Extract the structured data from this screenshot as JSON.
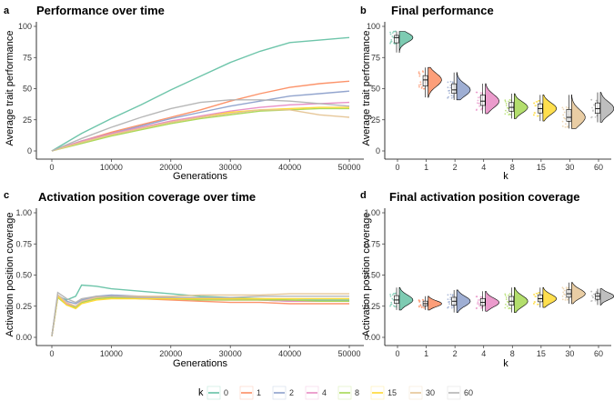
{
  "panels": [
    {
      "letter": "a",
      "title": "Performance over time",
      "xlabel": "Generations",
      "ylabel": "Average trait performance"
    },
    {
      "letter": "b",
      "title": "Final performance",
      "xlabel": "k",
      "ylabel": "Average trait performance"
    },
    {
      "letter": "c",
      "title": "Activation position coverage over time",
      "xlabel": "Generations",
      "ylabel": "Activation position coverage"
    },
    {
      "letter": "d",
      "title": "Final activation position coverage",
      "xlabel": "k",
      "ylabel": "Activation position coverage"
    }
  ],
  "legend": {
    "title": "k",
    "position": "bottom",
    "items": [
      "0",
      "1",
      "2",
      "4",
      "8",
      "15",
      "30",
      "60"
    ]
  },
  "colors": [
    "#66c2a5",
    "#fc8d62",
    "#8da0cb",
    "#e78ac3",
    "#a6d854",
    "#ffd92f",
    "#e5c494",
    "#b3b3b3"
  ],
  "chart_data": [
    {
      "type": "line",
      "title": "Performance over time",
      "xlabel": "Generations",
      "ylabel": "Average trait performance",
      "xlim": [
        0,
        50000
      ],
      "ylim": [
        0,
        100
      ],
      "xticks": [
        "0",
        "10000",
        "20000",
        "30000",
        "40000",
        "50000"
      ],
      "yticks": [
        "0",
        "25",
        "50",
        "75",
        "100"
      ],
      "x": [
        0,
        5000,
        10000,
        15000,
        20000,
        25000,
        30000,
        35000,
        40000,
        45000,
        50000
      ],
      "series": [
        {
          "name": "0",
          "values": [
            0,
            14,
            26,
            37,
            49,
            60,
            71,
            80,
            87,
            89,
            91
          ]
        },
        {
          "name": "1",
          "values": [
            0,
            8,
            15,
            21,
            27,
            33,
            40,
            46,
            51,
            54,
            56
          ]
        },
        {
          "name": "2",
          "values": [
            0,
            8,
            14,
            20,
            26,
            31,
            36,
            40,
            44,
            46,
            48
          ]
        },
        {
          "name": "4",
          "values": [
            0,
            8,
            14,
            19,
            24,
            28,
            32,
            35,
            37,
            38,
            39
          ]
        },
        {
          "name": "8",
          "values": [
            0,
            6,
            12,
            17,
            22,
            26,
            29,
            32,
            33,
            34,
            34
          ]
        },
        {
          "name": "15",
          "values": [
            0,
            7,
            13,
            18,
            23,
            27,
            31,
            33,
            34,
            35,
            35
          ]
        },
        {
          "name": "30",
          "values": [
            0,
            7,
            13,
            18,
            23,
            27,
            30,
            33,
            33,
            29,
            27
          ]
        },
        {
          "name": "60",
          "values": [
            0,
            10,
            19,
            27,
            34,
            39,
            41,
            41,
            40,
            38,
            36
          ]
        }
      ]
    },
    {
      "type": "violin",
      "title": "Final performance",
      "xlabel": "k",
      "ylabel": "Average trait performance",
      "ylim": [
        0,
        100
      ],
      "categories": [
        "0",
        "1",
        "2",
        "4",
        "8",
        "15",
        "30",
        "60"
      ],
      "yticks": [
        "0",
        "25",
        "50",
        "75",
        "100"
      ],
      "medians": [
        91,
        57,
        49,
        40,
        35,
        34,
        27,
        34
      ],
      "ranges": [
        [
          79,
          96
        ],
        [
          43,
          67
        ],
        [
          41,
          63
        ],
        [
          30,
          54
        ],
        [
          26,
          46
        ],
        [
          24,
          45
        ],
        [
          18,
          45
        ],
        [
          23,
          47
        ]
      ]
    },
    {
      "type": "line",
      "title": "Activation position coverage over time",
      "xlabel": "Generations",
      "ylabel": "Activation position coverage",
      "xlim": [
        0,
        50000
      ],
      "ylim": [
        0,
        1
      ],
      "xticks": [
        "0",
        "10000",
        "20000",
        "30000",
        "40000",
        "50000"
      ],
      "yticks": [
        "0.00",
        "0.25",
        "0.50",
        "0.75",
        "1.00"
      ],
      "x": [
        0,
        1000,
        2500,
        4000,
        5000,
        7500,
        10000,
        15000,
        20000,
        25000,
        30000,
        35000,
        40000,
        45000,
        50000
      ],
      "series": [
        {
          "name": "0",
          "values": [
            0.01,
            0.33,
            0.3,
            0.33,
            0.42,
            0.41,
            0.39,
            0.37,
            0.35,
            0.33,
            0.32,
            0.31,
            0.3,
            0.3,
            0.3
          ]
        },
        {
          "name": "1",
          "values": [
            0.01,
            0.33,
            0.26,
            0.24,
            0.28,
            0.31,
            0.32,
            0.31,
            0.3,
            0.29,
            0.28,
            0.28,
            0.27,
            0.27,
            0.27
          ]
        },
        {
          "name": "2",
          "values": [
            0.01,
            0.34,
            0.29,
            0.27,
            0.3,
            0.33,
            0.34,
            0.33,
            0.32,
            0.31,
            0.31,
            0.3,
            0.29,
            0.29,
            0.29
          ]
        },
        {
          "name": "4",
          "values": [
            0.01,
            0.33,
            0.27,
            0.25,
            0.29,
            0.32,
            0.33,
            0.32,
            0.31,
            0.3,
            0.3,
            0.3,
            0.29,
            0.29,
            0.29
          ]
        },
        {
          "name": "8",
          "values": [
            0.01,
            0.32,
            0.26,
            0.24,
            0.28,
            0.31,
            0.32,
            0.31,
            0.31,
            0.3,
            0.3,
            0.3,
            0.3,
            0.29,
            0.29
          ]
        },
        {
          "name": "15",
          "values": [
            0.01,
            0.33,
            0.26,
            0.23,
            0.27,
            0.3,
            0.31,
            0.31,
            0.31,
            0.31,
            0.31,
            0.31,
            0.31,
            0.31,
            0.31
          ]
        },
        {
          "name": "30",
          "values": [
            0.01,
            0.34,
            0.28,
            0.25,
            0.29,
            0.32,
            0.33,
            0.33,
            0.33,
            0.34,
            0.34,
            0.34,
            0.35,
            0.35,
            0.35
          ]
        },
        {
          "name": "60",
          "values": [
            0.01,
            0.36,
            0.31,
            0.28,
            0.31,
            0.33,
            0.33,
            0.32,
            0.32,
            0.32,
            0.32,
            0.33,
            0.33,
            0.33,
            0.33
          ]
        }
      ]
    },
    {
      "type": "violin",
      "title": "Final activation position coverage",
      "xlabel": "k",
      "ylabel": "Activation position coverage",
      "ylim": [
        0,
        1
      ],
      "categories": [
        "0",
        "1",
        "2",
        "4",
        "8",
        "15",
        "30",
        "60"
      ],
      "yticks": [
        "0.00",
        "0.25",
        "0.50",
        "0.75",
        "1.00"
      ],
      "medians": [
        0.3,
        0.27,
        0.29,
        0.28,
        0.29,
        0.31,
        0.35,
        0.33
      ],
      "ranges": [
        [
          0.22,
          0.4
        ],
        [
          0.22,
          0.33
        ],
        [
          0.2,
          0.38
        ],
        [
          0.21,
          0.37
        ],
        [
          0.2,
          0.4
        ],
        [
          0.24,
          0.4
        ],
        [
          0.27,
          0.44
        ],
        [
          0.26,
          0.39
        ]
      ]
    }
  ]
}
